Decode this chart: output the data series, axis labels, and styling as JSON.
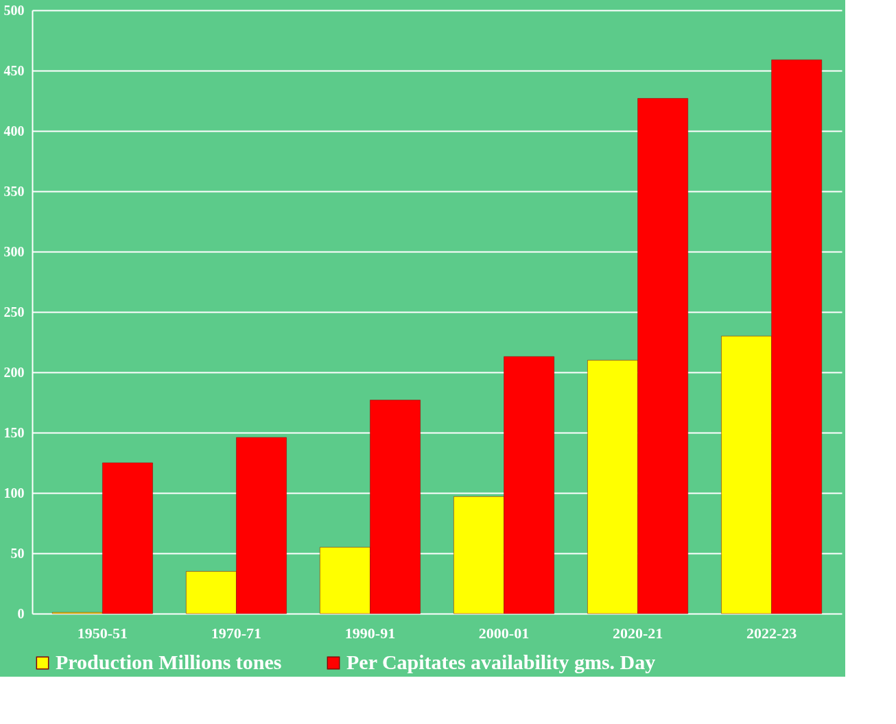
{
  "chart_data": {
    "type": "bar",
    "categories": [
      "1950-51",
      "1970-71",
      "1990-91",
      "2000-01",
      "2020-21",
      "2022-23"
    ],
    "series": [
      {
        "name": "Production Millions tones",
        "color": "#ffff00",
        "values": [
          1,
          35,
          55,
          97,
          210,
          230
        ]
      },
      {
        "name": "Per Capitates availability gms. Day",
        "color": "#ff0000",
        "values": [
          125,
          146,
          177,
          213,
          427,
          459
        ]
      }
    ],
    "ylim": [
      0,
      500
    ],
    "yticks": [
      0,
      50,
      100,
      150,
      200,
      250,
      300,
      350,
      400,
      450,
      500
    ],
    "grid": "y",
    "legend": "bottom"
  }
}
